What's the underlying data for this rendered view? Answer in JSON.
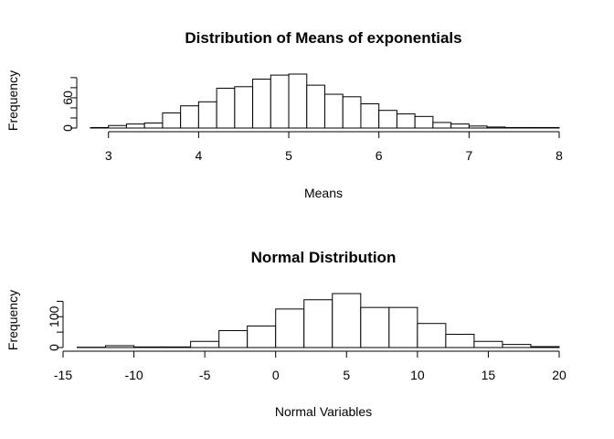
{
  "chart_data": [
    {
      "type": "bar",
      "title": "Distribution of Means of exponentials",
      "xlabel": "Means",
      "ylabel": "Frequency",
      "bin_edges": [
        2.8,
        3.0,
        3.2,
        3.4,
        3.6,
        3.8,
        4.0,
        4.2,
        4.4,
        4.6,
        4.8,
        5.0,
        5.2,
        5.4,
        5.6,
        5.8,
        6.0,
        6.2,
        6.4,
        6.6,
        6.8,
        7.0,
        7.2,
        7.4,
        7.6,
        7.8,
        8.0
      ],
      "values": [
        1,
        5,
        8,
        10,
        30,
        44,
        52,
        79,
        82,
        97,
        105,
        107,
        85,
        67,
        62,
        48,
        35,
        28,
        23,
        11,
        8,
        4,
        2,
        1,
        1,
        1
      ],
      "xlim": [
        2.8,
        8.0
      ],
      "ylim": [
        0,
        107
      ],
      "xticks": [
        3,
        4,
        5,
        6,
        7,
        8
      ],
      "xtick_labels": [
        "3",
        "4",
        "5",
        "6",
        "7",
        "8"
      ],
      "yticks": [
        0,
        20,
        40,
        60,
        80,
        100
      ],
      "ytick_labels": [
        "0",
        "",
        "",
        "60",
        "",
        ""
      ],
      "grid": false
    },
    {
      "type": "bar",
      "title": "Normal Distribution",
      "xlabel": "Normal Variables",
      "ylabel": "Frequency",
      "bin_edges": [
        -14,
        -12,
        -10,
        -8,
        -6,
        -4,
        -2,
        0,
        2,
        4,
        6,
        8,
        10,
        12,
        14,
        16,
        18,
        20
      ],
      "values": [
        1,
        6,
        2,
        2,
        20,
        55,
        70,
        125,
        155,
        175,
        130,
        130,
        78,
        43,
        20,
        10,
        3
      ],
      "xlim": [
        -15,
        20
      ],
      "ylim": [
        0,
        175
      ],
      "xticks": [
        -15,
        -10,
        -5,
        0,
        5,
        10,
        15,
        20
      ],
      "xtick_labels": [
        "-15",
        "-10",
        "-5",
        "0",
        "5",
        "10",
        "15",
        "20"
      ],
      "yticks": [
        0,
        50,
        100,
        150
      ],
      "ytick_labels": [
        "0",
        "",
        "100",
        ""
      ],
      "grid": false
    }
  ]
}
